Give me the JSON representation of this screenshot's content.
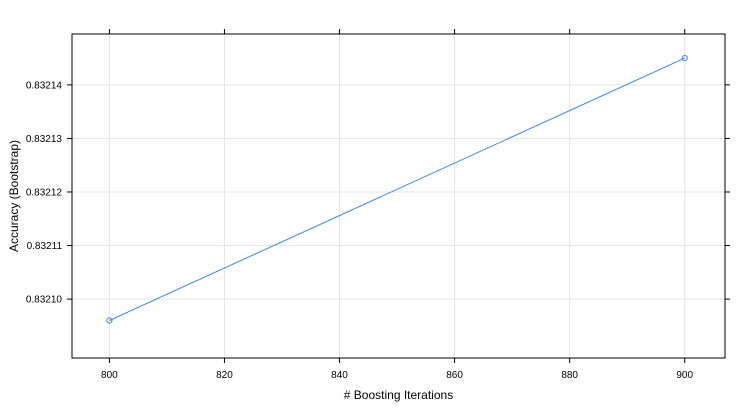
{
  "chart_data": {
    "type": "line",
    "title": "",
    "xlabel": "# Boosting Iterations",
    "ylabel": "Accuracy (Bootstrap)",
    "x": [
      800,
      900
    ],
    "series": [
      {
        "name": "",
        "values": [
          0.832096,
          0.832145
        ],
        "color": "#3A86F0"
      }
    ],
    "xlim": [
      793.5,
      907
    ],
    "ylim": [
      0.832089,
      0.8321495
    ],
    "x_ticks": [
      800,
      820,
      840,
      860,
      880,
      900
    ],
    "x_tick_labels": [
      "800",
      "820",
      "840",
      "860",
      "880",
      "900"
    ],
    "y_ticks": [
      0.8321,
      0.83211,
      0.83212,
      0.83213,
      0.83214
    ],
    "y_tick_labels": [
      "0.83210",
      "0.83211",
      "0.83212",
      "0.83213",
      "0.83214"
    ],
    "grid": true,
    "marker": "open-circle"
  }
}
